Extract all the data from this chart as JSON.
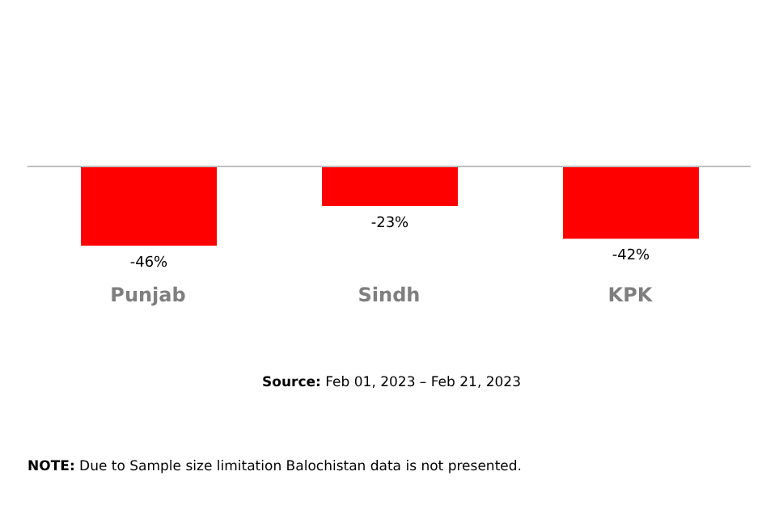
{
  "chart_data": {
    "type": "bar",
    "categories": [
      "Punjab",
      "Sindh",
      "KPK"
    ],
    "values": [
      -46,
      -23,
      -42
    ],
    "value_labels": [
      "-46%",
      "-23%",
      "-42%"
    ],
    "color": "#ff0000",
    "grid": false,
    "legend": false,
    "annotations": [
      "Source: Feb 01, 2023 – Feb 21, 2023",
      "NOTE: Due to Sample size limitation Balochistan data is not presented."
    ]
  }
}
